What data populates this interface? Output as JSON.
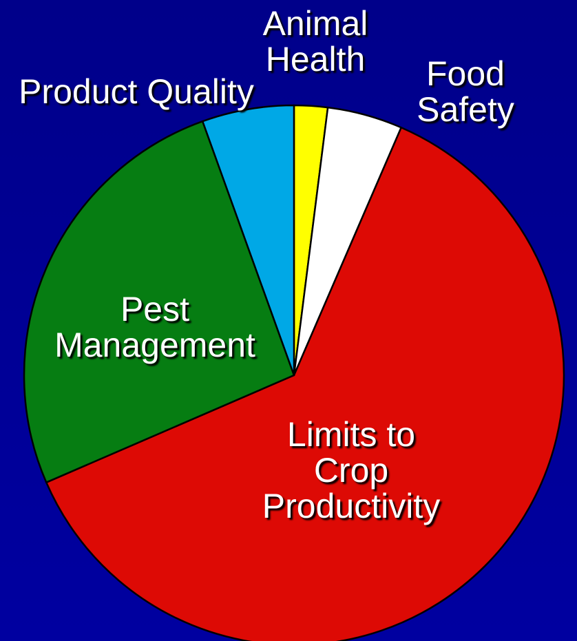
{
  "chart_data": {
    "type": "pie",
    "categories": [
      "Animal\nHealth",
      "Food Safety",
      "Limits to\nCrop Productivity",
      "Pest\nManagement",
      "Product Quality"
    ],
    "values": [
      2,
      4.5,
      62,
      26,
      5.5
    ],
    "colors": [
      "#ffff00",
      "#ffffff",
      "#dd0a05",
      "#067d12",
      "#00a8e6"
    ]
  }
}
